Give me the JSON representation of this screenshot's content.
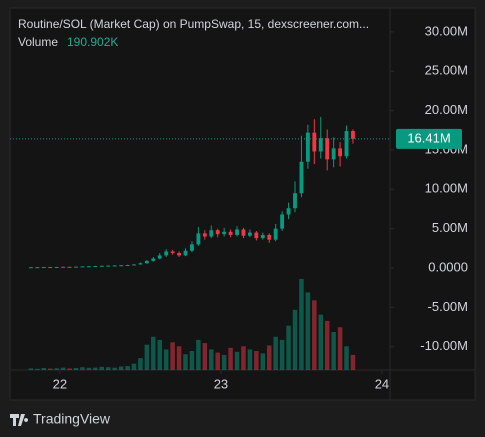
{
  "chart_data": {
    "type": "candlestick",
    "title": "Routine/SOL (Market Cap) on PumpSwap, 15, dexscreener.com...",
    "volume_label": "Volume",
    "volume_value_label": "190.902K",
    "x": [
      21.82,
      21.86,
      21.9,
      21.94,
      21.98,
      22.02,
      22.06,
      22.1,
      22.14,
      22.18,
      22.22,
      22.26,
      22.3,
      22.34,
      22.38,
      22.42,
      22.46,
      22.5,
      22.54,
      22.58,
      22.62,
      22.66,
      22.7,
      22.74,
      22.78,
      22.82,
      22.86,
      22.9,
      22.94,
      22.98,
      23.02,
      23.06,
      23.1,
      23.14,
      23.18,
      23.22,
      23.26,
      23.3,
      23.34,
      23.38,
      23.42,
      23.46,
      23.5,
      23.54,
      23.58,
      23.62,
      23.66,
      23.7,
      23.74,
      23.78,
      23.82
    ],
    "open": [
      0.09,
      0.1,
      0.1,
      0.12,
      0.11,
      0.13,
      0.15,
      0.14,
      0.17,
      0.2,
      0.22,
      0.25,
      0.28,
      0.3,
      0.32,
      0.35,
      0.38,
      0.45,
      0.6,
      0.9,
      1.2,
      1.6,
      2.1,
      1.9,
      1.6,
      2.2,
      3.0,
      4.4,
      4.0,
      4.8,
      4.3,
      4.6,
      4.2,
      4.9,
      4.1,
      4.5,
      3.8,
      4.2,
      3.6,
      5.0,
      6.8,
      7.6,
      9.5,
      13.5,
      17.2,
      14.8,
      16.5,
      13.8,
      15.2,
      14.2,
      17.4
    ],
    "high": [
      0.12,
      0.13,
      0.14,
      0.14,
      0.15,
      0.17,
      0.17,
      0.19,
      0.22,
      0.25,
      0.27,
      0.3,
      0.33,
      0.35,
      0.38,
      0.41,
      0.5,
      0.7,
      1.0,
      1.4,
      1.9,
      2.4,
      2.3,
      2.1,
      2.5,
      3.4,
      5.2,
      4.8,
      5.4,
      5.0,
      5.1,
      4.9,
      5.3,
      5.1,
      4.9,
      4.7,
      4.5,
      4.4,
      5.6,
      7.2,
      8.3,
      11.0,
      16.8,
      18.2,
      18.9,
      19.2,
      17.6,
      16.6,
      16.0,
      18.1,
      17.6
    ],
    "low": [
      0.07,
      0.08,
      0.09,
      0.09,
      0.1,
      0.11,
      0.12,
      0.13,
      0.15,
      0.18,
      0.2,
      0.23,
      0.26,
      0.28,
      0.3,
      0.33,
      0.36,
      0.42,
      0.55,
      0.8,
      1.1,
      1.4,
      1.7,
      1.4,
      1.5,
      2.0,
      2.8,
      3.6,
      3.8,
      3.9,
      4.0,
      3.9,
      4.0,
      3.8,
      3.9,
      3.5,
      3.6,
      3.2,
      3.4,
      4.7,
      6.2,
      7.1,
      9.0,
      12.6,
      13.2,
      13.9,
      12.4,
      12.8,
      12.9,
      13.9,
      15.8
    ],
    "close": [
      0.1,
      0.1,
      0.12,
      0.11,
      0.13,
      0.15,
      0.14,
      0.17,
      0.2,
      0.22,
      0.25,
      0.28,
      0.3,
      0.32,
      0.35,
      0.38,
      0.45,
      0.6,
      0.9,
      1.2,
      1.6,
      2.1,
      1.9,
      1.6,
      2.2,
      3.0,
      4.4,
      4.0,
      4.8,
      4.3,
      4.6,
      4.2,
      4.9,
      4.1,
      4.5,
      3.8,
      4.2,
      3.6,
      5.0,
      6.8,
      7.6,
      9.5,
      13.5,
      17.2,
      14.8,
      16.5,
      13.8,
      15.2,
      14.2,
      17.4,
      16.41
    ],
    "volume": [
      20,
      15,
      25,
      18,
      22,
      30,
      20,
      25,
      35,
      28,
      30,
      40,
      35,
      30,
      45,
      50,
      80,
      150,
      320,
      420,
      380,
      260,
      350,
      300,
      200,
      240,
      380,
      340,
      260,
      220,
      190,
      280,
      230,
      300,
      260,
      240,
      210,
      310,
      420,
      380,
      560,
      760,
      1150,
      980,
      880,
      700,
      620,
      480,
      540,
      300,
      190.902
    ],
    "volume_lim": [
      0,
      1200
    ],
    "up_color": "#089981",
    "down_color": "#f23645",
    "xlim": [
      21.69,
      24.05
    ],
    "xticks": [
      22,
      23,
      24
    ],
    "ylim": [
      -12.96,
      32.78
    ],
    "yticks": [
      {
        "value": 30,
        "label": "30.00M"
      },
      {
        "value": 25,
        "label": "25.00M"
      },
      {
        "value": 20,
        "label": "20.00M"
      },
      {
        "value": 15,
        "label": "15.00M"
      },
      {
        "value": 10,
        "label": "10.00M"
      },
      {
        "value": 5,
        "label": "5.00M"
      },
      {
        "value": 0,
        "label": "0.0000"
      },
      {
        "value": -5,
        "label": "-5.00M"
      },
      {
        "value": -10,
        "label": "-10.00M"
      }
    ],
    "last_price": {
      "value": 16.41,
      "label": "16.41M"
    },
    "grid": false,
    "brand": "TradingView"
  }
}
